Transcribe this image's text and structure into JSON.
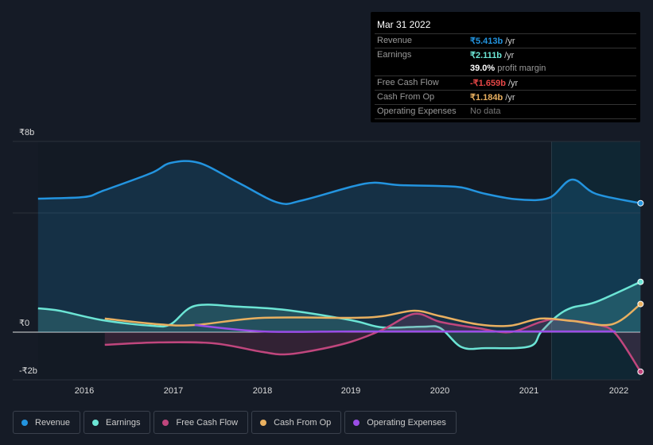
{
  "tooltip": {
    "date": "Mar 31 2022",
    "rows": [
      {
        "label": "Revenue",
        "value": "₹5.413b",
        "unit": " /yr",
        "color": "#2394df"
      },
      {
        "label": "Earnings",
        "value": "₹2.111b",
        "unit": " /yr",
        "color": "#6ce5d5"
      },
      {
        "label": "",
        "value": "39.0%",
        "unit": " profit margin",
        "color": "#ffffff"
      },
      {
        "label": "Free Cash Flow",
        "value": "-₹1.659b",
        "unit": " /yr",
        "color": "#e64646"
      },
      {
        "label": "Cash From Op",
        "value": "₹1.184b",
        "unit": " /yr",
        "color": "#e9b060"
      },
      {
        "label": "Operating Expenses",
        "value": "No data",
        "unit": "",
        "color": "#777777"
      }
    ]
  },
  "chart_data": {
    "type": "line",
    "ylim": [
      -2,
      8
    ],
    "xlim": [
      2015.48,
      2022.25
    ],
    "y_ticks": [
      {
        "v": 8,
        "label": "₹8b"
      },
      {
        "v": 0,
        "label": "₹0"
      },
      {
        "v": -2,
        "label": "-₹2b"
      }
    ],
    "x_ticks": [
      "2016",
      "2017",
      "2018",
      "2019",
      "2020",
      "2021",
      "2022"
    ],
    "highlight_from": 2021.25,
    "series": [
      {
        "name": "Revenue",
        "color": "#2394df",
        "fill": true,
        "x": [
          2015.48,
          2016,
          2016.21,
          2016.75,
          2016.97,
          2017.29,
          2017.73,
          2018.18,
          2018.45,
          2019,
          2019.26,
          2019.53,
          2020,
          2020.24,
          2020.51,
          2020.87,
          2021.22,
          2021.48,
          2021.75,
          2022.25
        ],
        "y": [
          5.6,
          5.67,
          5.93,
          6.67,
          7.1,
          7.1,
          6.27,
          5.43,
          5.53,
          6.1,
          6.27,
          6.17,
          6.13,
          6.07,
          5.8,
          5.57,
          5.63,
          6.4,
          5.8,
          5.41
        ]
      },
      {
        "name": "Earnings",
        "color": "#6ce5d5",
        "fill": true,
        "x": [
          2015.48,
          2015.72,
          2016.21,
          2016.75,
          2016.97,
          2017.24,
          2017.73,
          2018.27,
          2019,
          2019.35,
          2019.8,
          2020,
          2020.24,
          2020.51,
          2021,
          2021.13,
          2021.31,
          2021.48,
          2021.75,
          2022.25
        ],
        "y": [
          1.0,
          0.9,
          0.5,
          0.27,
          0.33,
          1.1,
          1.07,
          0.93,
          0.5,
          0.2,
          0.23,
          0.17,
          -0.63,
          -0.67,
          -0.6,
          0,
          0.67,
          1.03,
          1.27,
          2.11
        ]
      },
      {
        "name": "Free Cash Flow",
        "color": "#c0467d",
        "fill": true,
        "x": [
          2016.23,
          2016.84,
          2017.46,
          2018,
          2018.27,
          2018.63,
          2019,
          2019.35,
          2019.71,
          2020,
          2020.42,
          2020.78,
          2021.13,
          2021.31,
          2021.75,
          2021.97,
          2022.25
        ],
        "y": [
          -0.53,
          -0.43,
          -0.47,
          -0.83,
          -0.93,
          -0.73,
          -0.4,
          0.1,
          0.77,
          0.43,
          0.17,
          0,
          0.43,
          0.53,
          0.33,
          -0.07,
          -1.66
        ]
      },
      {
        "name": "Cash From Op",
        "color": "#e9b060",
        "fill": false,
        "x": [
          2016.23,
          2016.84,
          2017.24,
          2018,
          2019,
          2019.35,
          2019.71,
          2020,
          2020.42,
          2020.78,
          2021.13,
          2021.48,
          2021.93,
          2022.25
        ],
        "y": [
          0.57,
          0.33,
          0.3,
          0.6,
          0.6,
          0.67,
          0.9,
          0.67,
          0.33,
          0.27,
          0.57,
          0.47,
          0.33,
          1.18
        ]
      },
      {
        "name": "Operating Expenses",
        "color": "#9a4de6",
        "fill": false,
        "x": [
          2017.24,
          2018,
          2019,
          2020,
          2021,
          2021.97
        ],
        "y": [
          0.3,
          0.03,
          0.03,
          0.03,
          0.03,
          0.03
        ]
      }
    ]
  },
  "legend": [
    "Revenue",
    "Earnings",
    "Free Cash Flow",
    "Cash From Op",
    "Operating Expenses"
  ]
}
